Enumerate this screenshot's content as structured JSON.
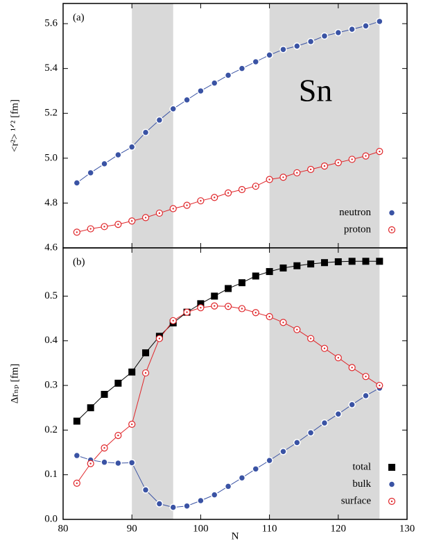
{
  "chart_data": [
    {
      "type": "line",
      "panel_label": "(a)",
      "annotation": "Sn",
      "ylabel": "<r²> ¹ᐟ² [fm]",
      "x": [
        82,
        84,
        86,
        88,
        90,
        92,
        94,
        96,
        98,
        100,
        102,
        104,
        106,
        108,
        110,
        112,
        114,
        116,
        118,
        120,
        122,
        124,
        126
      ],
      "xlim": [
        80,
        130
      ],
      "ylim": [
        4.6,
        5.69
      ],
      "yticks": [
        4.6,
        4.8,
        {
          "value": 5.0,
          "label": "5.0"
        },
        5.2,
        5.4,
        5.6
      ],
      "shaded_regions": [
        [
          90,
          96
        ],
        [
          110,
          126
        ]
      ],
      "legend": "lower right",
      "series": [
        {
          "name": "neutron",
          "color": "#3a53a4",
          "marker": "circle",
          "values": [
            4.89,
            4.935,
            4.975,
            5.015,
            5.05,
            5.115,
            5.17,
            5.22,
            5.26,
            5.3,
            5.335,
            5.37,
            5.4,
            5.43,
            5.46,
            5.485,
            5.5,
            5.52,
            5.545,
            5.56,
            5.575,
            5.59,
            5.61
          ]
        },
        {
          "name": "proton",
          "color": "#e0262a",
          "marker": "open-circle",
          "values": [
            4.67,
            4.685,
            4.695,
            4.705,
            4.72,
            4.735,
            4.755,
            4.775,
            4.79,
            4.81,
            4.825,
            4.845,
            4.86,
            4.875,
            4.905,
            4.915,
            4.935,
            4.95,
            4.965,
            4.98,
            4.995,
            5.01,
            5.03
          ]
        }
      ]
    },
    {
      "type": "line",
      "panel_label": "(b)",
      "ylabel": "Δrₙₚ [fm]",
      "xlabel": "N",
      "x": [
        82,
        84,
        86,
        88,
        90,
        92,
        94,
        96,
        98,
        100,
        102,
        104,
        106,
        108,
        110,
        112,
        114,
        116,
        118,
        120,
        122,
        124,
        126
      ],
      "xlim": [
        80,
        130
      ],
      "xticks": [
        80,
        90,
        100,
        110,
        120,
        130
      ],
      "ylim": [
        0,
        0.608
      ],
      "yticks": [
        {
          "value": 0,
          "label": "0.0"
        },
        0.1,
        0.2,
        0.3,
        0.4,
        0.5
      ],
      "shaded_regions": [
        [
          90,
          96
        ],
        [
          110,
          126
        ]
      ],
      "legend": "lower right",
      "series": [
        {
          "name": "total",
          "color": "#000000",
          "marker": "square",
          "values": [
            0.22,
            0.25,
            0.28,
            0.305,
            0.33,
            0.373,
            0.41,
            0.44,
            0.464,
            0.483,
            0.5,
            0.517,
            0.53,
            0.545,
            0.555,
            0.563,
            0.568,
            0.572,
            0.575,
            0.577,
            0.578,
            0.578,
            0.578
          ]
        },
        {
          "name": "bulk",
          "color": "#3a53a4",
          "marker": "circle",
          "values": [
            0.143,
            0.133,
            0.128,
            0.126,
            0.127,
            0.066,
            0.035,
            0.027,
            0.03,
            0.042,
            0.055,
            0.074,
            0.093,
            0.113,
            0.132,
            0.152,
            0.172,
            0.194,
            0.216,
            0.236,
            0.257,
            0.277,
            0.294
          ]
        },
        {
          "name": "surface",
          "color": "#e0262a",
          "marker": "open-circle",
          "values": [
            0.081,
            0.125,
            0.16,
            0.188,
            0.213,
            0.328,
            0.405,
            0.445,
            0.464,
            0.474,
            0.478,
            0.477,
            0.472,
            0.463,
            0.454,
            0.441,
            0.425,
            0.405,
            0.383,
            0.362,
            0.34,
            0.32,
            0.3
          ]
        }
      ]
    }
  ]
}
